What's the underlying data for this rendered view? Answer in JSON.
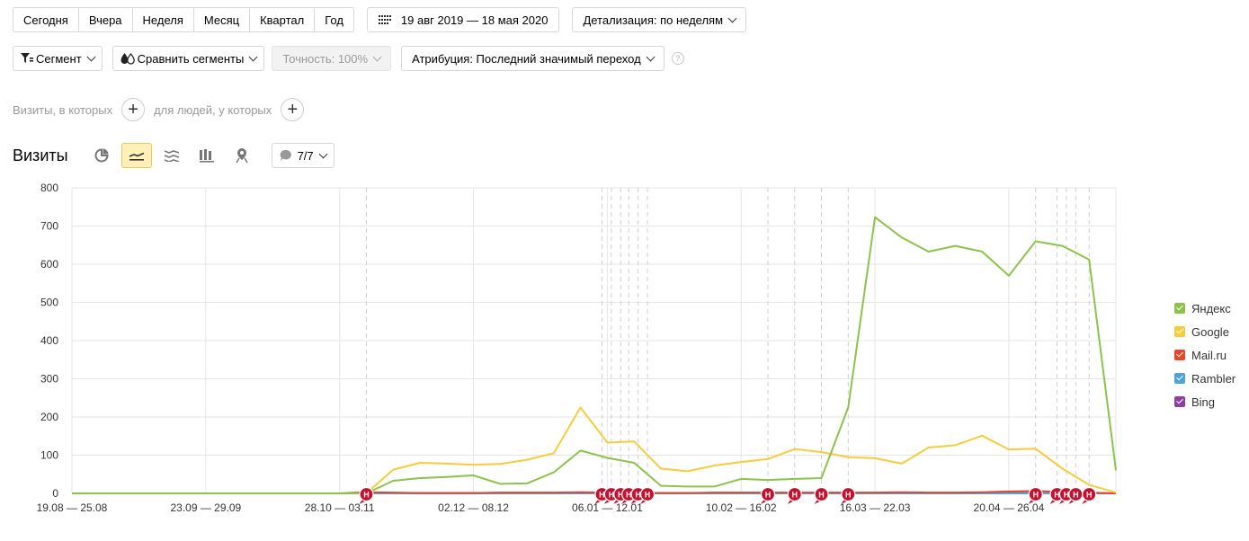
{
  "toolbar": {
    "periods": [
      "Сегодня",
      "Вчера",
      "Неделя",
      "Месяц",
      "Квартал",
      "Год"
    ],
    "date_range": "19 авг 2019 — 18 мая 2020",
    "detail": "Детализация: по неделям"
  },
  "filters": {
    "segment": "Сегмент",
    "compare": "Сравнить сегменты",
    "accuracy": "Точность: 100%",
    "attribution": "Атрибуция: Последний значимый переход",
    "help": "?"
  },
  "conditions": {
    "visits_label": "Визиты, в которых",
    "people_label": "для людей, у которых",
    "plus": "+"
  },
  "chart_header": {
    "title": "Визиты",
    "annotations_count": "7/7"
  },
  "colors": {
    "yandex": "#8cc34a",
    "google": "#f7cc3c",
    "mailru": "#e8452c",
    "rambler": "#4fa3db",
    "bing": "#8e3fa3",
    "annotation": "#c8102e"
  },
  "chart_data": {
    "type": "line",
    "ylim": [
      0,
      800
    ],
    "yticks": [
      0,
      100,
      200,
      300,
      400,
      500,
      600,
      700,
      800
    ],
    "grid": true,
    "legend_position": "right",
    "x_tick_labels": [
      "19.08 — 25.08",
      "23.09 — 29.09",
      "28.10 — 03.11",
      "02.12 — 08.12",
      "06.01 — 12.01",
      "10.02 — 16.02",
      "16.03 — 22.03",
      "20.04 — 26.04"
    ],
    "x_tick_week_index": [
      0,
      5,
      10,
      15,
      20,
      25,
      30,
      35
    ],
    "weeks": 40,
    "annotation_weeks": [
      11,
      19.8,
      20.15,
      20.5,
      20.8,
      21.15,
      21.5,
      26,
      27,
      28,
      29,
      36,
      36.8,
      37.15,
      37.5,
      38
    ],
    "annotation_label": "Н",
    "series": [
      {
        "name": "Яндекс",
        "color_key": "yandex",
        "values": [
          0,
          0,
          0,
          0,
          0,
          0,
          0,
          0,
          0,
          0,
          0,
          0,
          33,
          40,
          43,
          47,
          25,
          26,
          55,
          112,
          93,
          80,
          20,
          18,
          18,
          38,
          35,
          38,
          40,
          225,
          723,
          670,
          633,
          648,
          633,
          570,
          660,
          648,
          612,
          60
        ]
      },
      {
        "name": "Google",
        "color_key": "google",
        "values": [
          0,
          0,
          0,
          0,
          0,
          0,
          0,
          0,
          0,
          0,
          0,
          0,
          62,
          80,
          78,
          75,
          77,
          88,
          105,
          225,
          133,
          136,
          65,
          58,
          73,
          82,
          90,
          116,
          108,
          95,
          92,
          78,
          120,
          126,
          151,
          115,
          117,
          65,
          22,
          2
        ]
      },
      {
        "name": "Mail.ru",
        "color_key": "mailru",
        "values": [
          0,
          0,
          0,
          0,
          0,
          0,
          0,
          0,
          0,
          0,
          0,
          3,
          2,
          1,
          1,
          1,
          2,
          2,
          2,
          3,
          2,
          2,
          1,
          1,
          2,
          2,
          2,
          2,
          2,
          2,
          2,
          3,
          2,
          2,
          3,
          5,
          6,
          4,
          2,
          0
        ]
      },
      {
        "name": "Rambler",
        "color_key": "rambler",
        "values": [
          0,
          0,
          0,
          0,
          0,
          0,
          0,
          0,
          0,
          0,
          0,
          0,
          0,
          0,
          0,
          0,
          0,
          0,
          0,
          0,
          0,
          0,
          0,
          0,
          0,
          0,
          0,
          0,
          0,
          0,
          0,
          0,
          0,
          0,
          0,
          0,
          0,
          0,
          0,
          0
        ]
      },
      {
        "name": "Bing",
        "color_key": "bing",
        "values": [
          0,
          0,
          0,
          0,
          0,
          0,
          0,
          0,
          0,
          0,
          0,
          1,
          1,
          1,
          1,
          1,
          1,
          1,
          1,
          1,
          1,
          1,
          1,
          1,
          1,
          1,
          1,
          1,
          1,
          1,
          1,
          1,
          1,
          1,
          1,
          1,
          1,
          1,
          1,
          0
        ]
      }
    ]
  }
}
